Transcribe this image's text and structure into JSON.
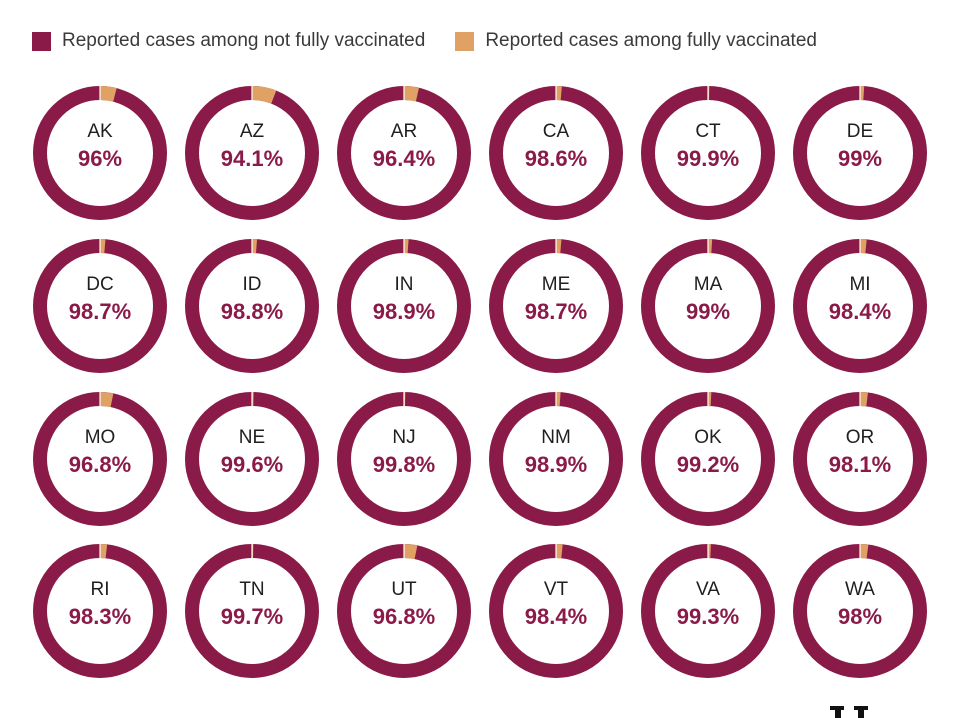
{
  "chart_data": {
    "type": "pie",
    "subtype": "donut-grid",
    "legend": {
      "placement": "top-left",
      "entries": [
        {
          "key": "not_vaccinated",
          "label": "Reported cases among not fully vaccinated",
          "color": "#8a1a48"
        },
        {
          "key": "vaccinated",
          "label": "Reported cases among fully vaccinated",
          "color": "#e0a264"
        }
      ]
    },
    "grid": {
      "columns": 6,
      "rows": 4
    },
    "items": [
      {
        "state": "AK",
        "label": "96%",
        "value": 96.0
      },
      {
        "state": "AZ",
        "label": "94.1%",
        "value": 94.1
      },
      {
        "state": "AR",
        "label": "96.4%",
        "value": 96.4
      },
      {
        "state": "CA",
        "label": "98.6%",
        "value": 98.6
      },
      {
        "state": "CT",
        "label": "99.9%",
        "value": 99.9
      },
      {
        "state": "DE",
        "label": "99%",
        "value": 99.0
      },
      {
        "state": "DC",
        "label": "98.7%",
        "value": 98.7
      },
      {
        "state": "ID",
        "label": "98.8%",
        "value": 98.8
      },
      {
        "state": "IN",
        "label": "98.9%",
        "value": 98.9
      },
      {
        "state": "ME",
        "label": "98.7%",
        "value": 98.7
      },
      {
        "state": "MA",
        "label": "99%",
        "value": 99.0
      },
      {
        "state": "MI",
        "label": "98.4%",
        "value": 98.4
      },
      {
        "state": "MO",
        "label": "96.8%",
        "value": 96.8
      },
      {
        "state": "NE",
        "label": "99.6%",
        "value": 99.6
      },
      {
        "state": "NJ",
        "label": "99.8%",
        "value": 99.8
      },
      {
        "state": "NM",
        "label": "98.9%",
        "value": 98.9
      },
      {
        "state": "OK",
        "label": "99.2%",
        "value": 99.2
      },
      {
        "state": "OR",
        "label": "98.1%",
        "value": 98.1
      },
      {
        "state": "RI",
        "label": "98.3%",
        "value": 98.3
      },
      {
        "state": "TN",
        "label": "99.7%",
        "value": 99.7
      },
      {
        "state": "UT",
        "label": "96.8%",
        "value": 96.8
      },
      {
        "state": "VT",
        "label": "98.4%",
        "value": 98.4
      },
      {
        "state": "VA",
        "label": "99.3%",
        "value": 99.3
      },
      {
        "state": "WA",
        "label": "98%",
        "value": 98.0
      }
    ]
  },
  "colors": {
    "not_vaccinated": "#8a1a48",
    "vaccinated": "#e0a264",
    "percent_text": "#8a1a48",
    "separator": "#ffffff"
  }
}
